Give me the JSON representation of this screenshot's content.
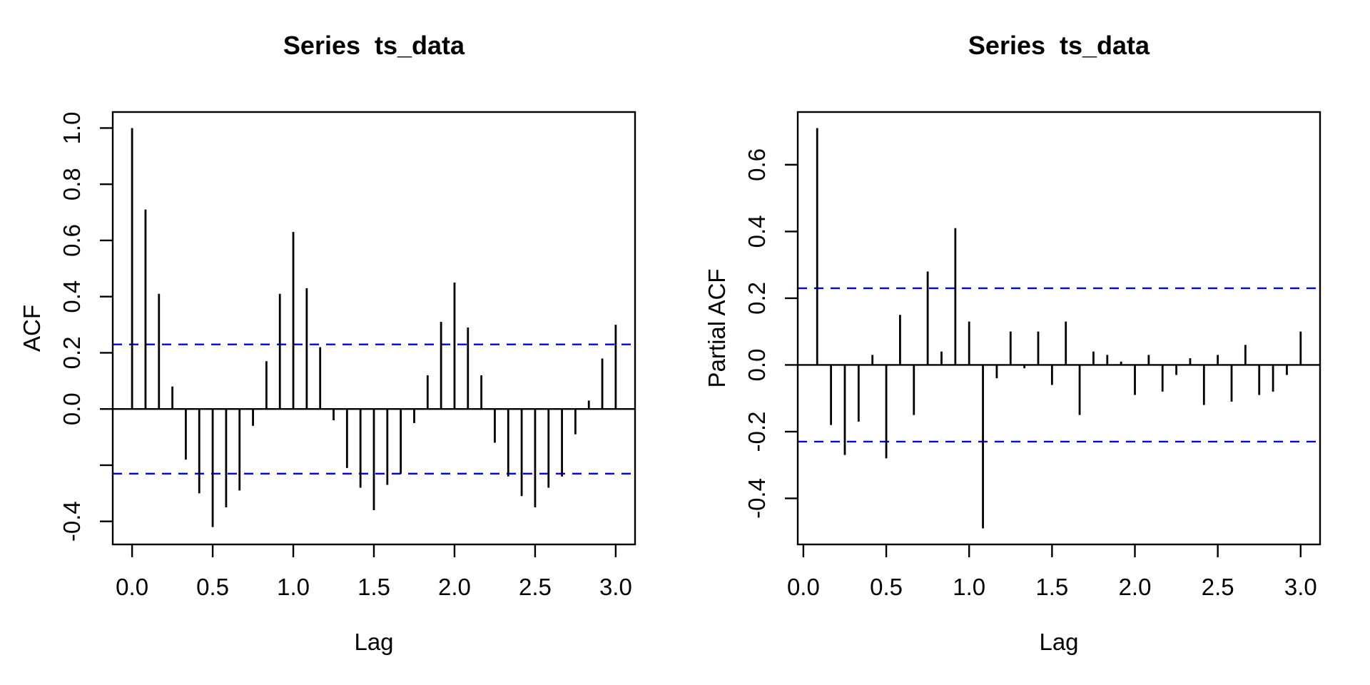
{
  "figure": {
    "background": "#ffffff",
    "foreground": "#000000"
  },
  "chart_data": [
    {
      "type": "bar",
      "variant": "acf-stem-plot",
      "title": "Series  ts_data",
      "xlabel": "Lag",
      "ylabel": "ACF",
      "x_first": 0.0,
      "x_step": 0.0833333,
      "values": [
        1.0,
        0.71,
        0.41,
        0.08,
        -0.18,
        -0.3,
        -0.42,
        -0.35,
        -0.29,
        -0.06,
        0.17,
        0.41,
        0.63,
        0.43,
        0.22,
        -0.04,
        -0.21,
        -0.28,
        -0.36,
        -0.27,
        -0.23,
        -0.05,
        0.12,
        0.31,
        0.45,
        0.29,
        0.12,
        -0.12,
        -0.24,
        -0.31,
        -0.35,
        -0.28,
        -0.24,
        -0.09,
        0.03,
        0.18,
        0.3
      ],
      "conf_level": 0.23,
      "xlim": [
        -0.12,
        3.12
      ],
      "ylim": [
        -0.482,
        1.057
      ],
      "xtick_values": [
        0.0,
        0.5,
        1.0,
        1.5,
        2.0,
        2.5,
        3.0
      ],
      "xtick_labels": [
        "0.0",
        "0.5",
        "1.0",
        "1.5",
        "2.0",
        "2.5",
        "3.0"
      ],
      "ytick_values": [
        1.0,
        0.8,
        0.6,
        0.4,
        0.2,
        0.0,
        -0.2,
        -0.4
      ],
      "ytick_labels": [
        "1.0",
        "0.8",
        "0.6",
        "0.4",
        "0.2",
        "0.0",
        "",
        "-0.4"
      ],
      "grid": "off",
      "legend": "none",
      "bar_color": "#000000",
      "conf_line_color": "#0000ff",
      "conf_line_style": "dashed"
    },
    {
      "type": "bar",
      "variant": "acf-stem-plot",
      "title": "Series  ts_data",
      "xlabel": "Lag",
      "ylabel": "Partial ACF",
      "x_first": 0.0833333,
      "x_step": 0.0833333,
      "values": [
        0.71,
        -0.18,
        -0.27,
        -0.17,
        0.03,
        -0.28,
        0.15,
        -0.15,
        0.28,
        0.04,
        0.41,
        0.13,
        -0.49,
        -0.04,
        0.1,
        -0.01,
        0.1,
        -0.06,
        0.13,
        -0.15,
        0.04,
        0.03,
        0.01,
        -0.09,
        0.03,
        -0.08,
        -0.03,
        0.02,
        -0.12,
        0.03,
        -0.11,
        0.06,
        -0.09,
        -0.08,
        -0.03,
        0.1
      ],
      "conf_level": 0.23,
      "xlim": [
        -0.034,
        3.117
      ],
      "ylim": [
        -0.538,
        0.758
      ],
      "xtick_values": [
        0.0,
        0.5,
        1.0,
        1.5,
        2.0,
        2.5,
        3.0
      ],
      "xtick_labels": [
        "0.0",
        "0.5",
        "1.0",
        "1.5",
        "2.0",
        "2.5",
        "3.0"
      ],
      "ytick_values": [
        0.6,
        0.4,
        0.2,
        0.0,
        -0.2,
        -0.4
      ],
      "ytick_labels": [
        "0.6",
        "0.4",
        "0.2",
        "0.0",
        "-0.2",
        "-0.4"
      ],
      "grid": "off",
      "legend": "none",
      "bar_color": "#000000",
      "conf_line_color": "#0000ff",
      "conf_line_style": "dashed"
    }
  ]
}
